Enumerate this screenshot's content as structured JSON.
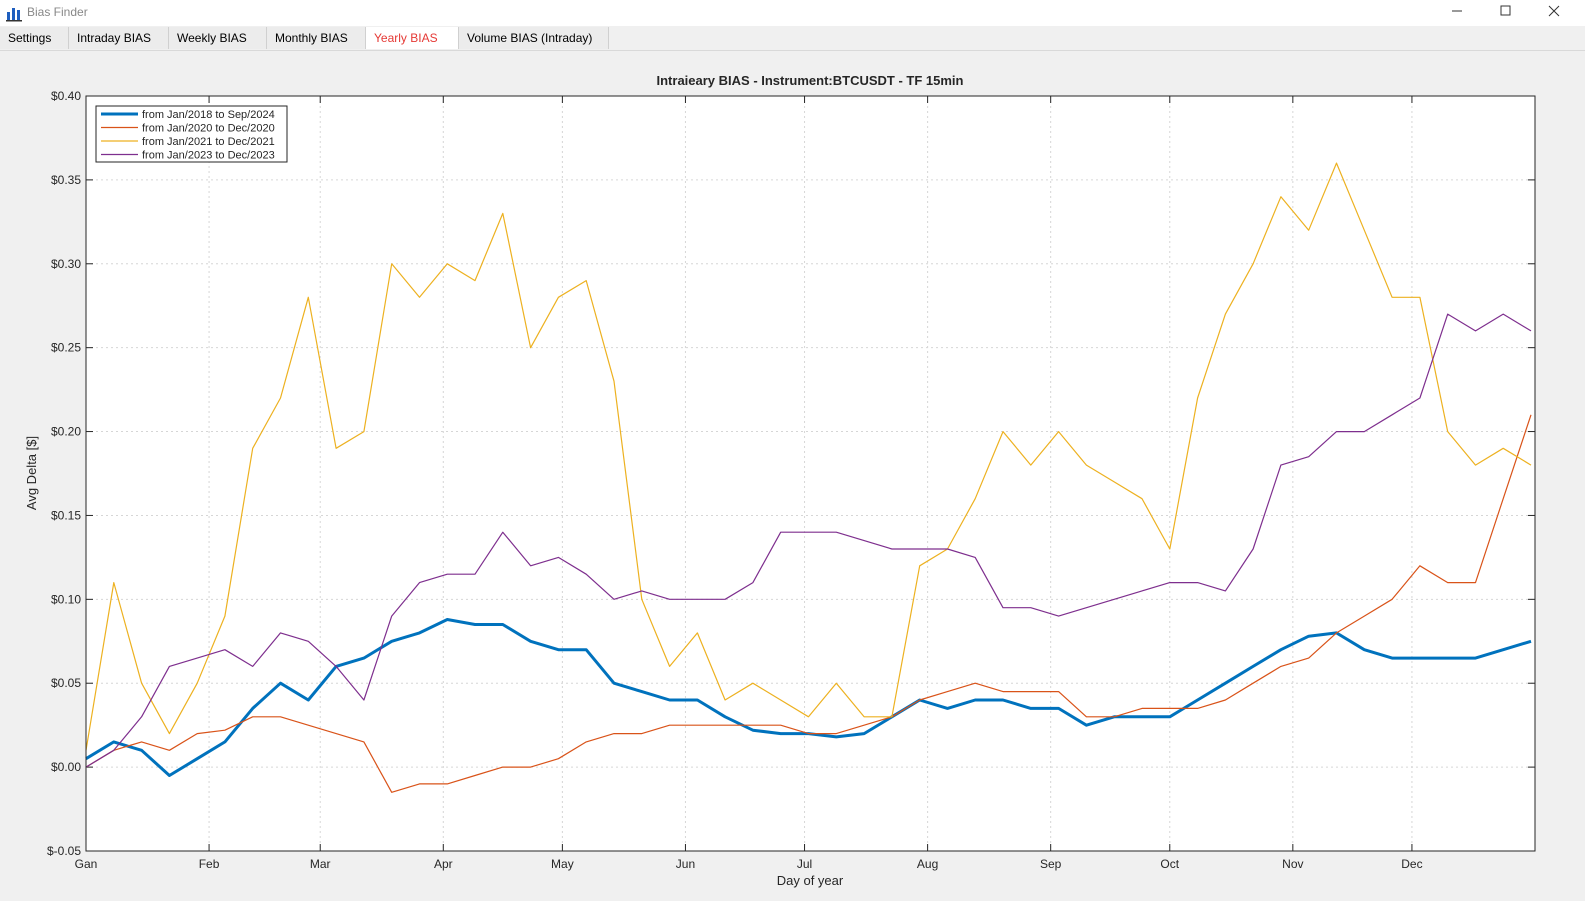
{
  "window": {
    "title": "Bias Finder"
  },
  "tabs": [
    "Settings",
    "Intraday BIAS",
    "Weekly BIAS",
    "Monthly BIAS",
    "Yearly BIAS",
    "Volume BIAS (Intraday)"
  ],
  "active_tab": 4,
  "chart_data": {
    "type": "line",
    "title": "Intraieary BIAS - Instrument:BTCUSDT - TF 15min",
    "x_label": "Day of year",
    "y_label": "Avg Delta [$]",
    "xlim": [
      0,
      365
    ],
    "ylim": [
      -0.05,
      0.4
    ],
    "xticks": [
      {
        "value": 0,
        "label": "Gan"
      },
      {
        "value": 31,
        "label": "Feb"
      },
      {
        "value": 59,
        "label": "Mar"
      },
      {
        "value": 90,
        "label": "Apr"
      },
      {
        "value": 120,
        "label": "May"
      },
      {
        "value": 151,
        "label": "Jun"
      },
      {
        "value": 181,
        "label": "Jul"
      },
      {
        "value": 212,
        "label": "Aug"
      },
      {
        "value": 243,
        "label": "Sep"
      },
      {
        "value": 273,
        "label": "Oct"
      },
      {
        "value": 304,
        "label": "Nov"
      },
      {
        "value": 334,
        "label": "Dec"
      }
    ],
    "yticks": [
      {
        "value": -0.05,
        "label": "$-0.05"
      },
      {
        "value": 0,
        "label": "$0.00"
      },
      {
        "value": 0.05,
        "label": "$0.05"
      },
      {
        "value": 0.1,
        "label": "$0.10"
      },
      {
        "value": 0.15,
        "label": "$0.15"
      },
      {
        "value": 0.2,
        "label": "$0.20"
      },
      {
        "value": 0.25,
        "label": "$0.25"
      },
      {
        "value": 0.3,
        "label": "$0.30"
      },
      {
        "value": 0.35,
        "label": "$0.35"
      },
      {
        "value": 0.4,
        "label": "$0.40"
      }
    ],
    "grid": true,
    "legend": "upper left",
    "x": [
      0,
      7,
      14,
      21,
      28,
      35,
      42,
      49,
      56,
      63,
      70,
      77,
      84,
      91,
      98,
      105,
      112,
      119,
      126,
      133,
      140,
      147,
      154,
      161,
      168,
      175,
      182,
      189,
      196,
      203,
      210,
      217,
      224,
      231,
      238,
      245,
      252,
      259,
      266,
      273,
      280,
      287,
      294,
      301,
      308,
      315,
      322,
      329,
      336,
      343,
      350,
      357,
      364
    ],
    "series": [
      {
        "name": "from Jan/2018 to Sep/2024",
        "color": "#0072bd",
        "width": 3,
        "values": [
          0.005,
          0.015,
          0.01,
          -0.005,
          0.005,
          0.015,
          0.035,
          0.05,
          0.04,
          0.06,
          0.065,
          0.075,
          0.08,
          0.088,
          0.085,
          0.085,
          0.075,
          0.07,
          0.07,
          0.05,
          0.045,
          0.04,
          0.04,
          0.03,
          0.022,
          0.02,
          0.02,
          0.018,
          0.02,
          0.03,
          0.04,
          0.035,
          0.04,
          0.04,
          0.035,
          0.035,
          0.025,
          0.03,
          0.03,
          0.03,
          0.04,
          0.05,
          0.06,
          0.07,
          0.078,
          0.08,
          0.07,
          0.065,
          0.065,
          0.065,
          0.065,
          0.07,
          0.075
        ]
      },
      {
        "name": "from Jan/2020 to Dec/2020",
        "color": "#d95319",
        "width": 1.2,
        "values": [
          0,
          0.01,
          0.015,
          0.01,
          0.02,
          0.022,
          0.03,
          0.03,
          0.025,
          0.02,
          0.015,
          -0.015,
          -0.01,
          -0.01,
          -0.005,
          0,
          0,
          0.005,
          0.015,
          0.02,
          0.02,
          0.025,
          0.025,
          0.025,
          0.025,
          0.025,
          0.02,
          0.02,
          0.025,
          0.03,
          0.04,
          0.045,
          0.05,
          0.045,
          0.045,
          0.045,
          0.03,
          0.03,
          0.035,
          0.035,
          0.035,
          0.04,
          0.05,
          0.06,
          0.065,
          0.08,
          0.09,
          0.1,
          0.12,
          0.11,
          0.11,
          0.16,
          0.21
        ]
      },
      {
        "name": "from Jan/2021 to Dec/2021",
        "color": "#edb120",
        "width": 1.2,
        "values": [
          0.01,
          0.11,
          0.05,
          0.02,
          0.05,
          0.09,
          0.19,
          0.22,
          0.28,
          0.19,
          0.2,
          0.3,
          0.28,
          0.3,
          0.29,
          0.33,
          0.25,
          0.28,
          0.29,
          0.23,
          0.1,
          0.06,
          0.08,
          0.04,
          0.05,
          0.04,
          0.03,
          0.05,
          0.03,
          0.03,
          0.12,
          0.13,
          0.16,
          0.2,
          0.18,
          0.2,
          0.18,
          0.17,
          0.16,
          0.13,
          0.22,
          0.27,
          0.3,
          0.34,
          0.32,
          0.36,
          0.32,
          0.28,
          0.28,
          0.2,
          0.18,
          0.19,
          0.18
        ]
      },
      {
        "name": "from Jan/2023 to Dec/2023",
        "color": "#7e2f8e",
        "width": 1.2,
        "values": [
          0,
          0.01,
          0.03,
          0.06,
          0.065,
          0.07,
          0.06,
          0.08,
          0.075,
          0.06,
          0.04,
          0.09,
          0.11,
          0.115,
          0.115,
          0.14,
          0.12,
          0.125,
          0.115,
          0.1,
          0.105,
          0.1,
          0.1,
          0.1,
          0.11,
          0.14,
          0.14,
          0.14,
          0.135,
          0.13,
          0.13,
          0.13,
          0.125,
          0.095,
          0.095,
          0.09,
          0.095,
          0.1,
          0.105,
          0.11,
          0.11,
          0.105,
          0.13,
          0.18,
          0.185,
          0.2,
          0.2,
          0.21,
          0.22,
          0.27,
          0.26,
          0.27,
          0.26
        ]
      }
    ]
  }
}
